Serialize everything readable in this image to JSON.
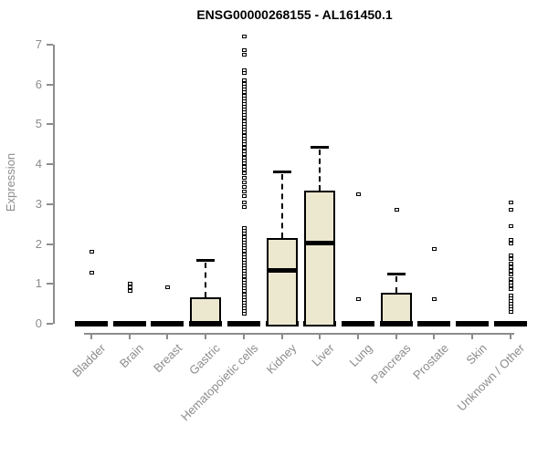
{
  "chart_data": {
    "type": "boxplot",
    "title": "ENSG00000268155 - AL161450.1",
    "xlabel": "",
    "ylabel": "Expression",
    "ylim": [
      0,
      7.2
    ],
    "yticks": [
      0,
      1,
      2,
      3,
      4,
      5,
      6,
      7
    ],
    "grid": "off",
    "legend": "none",
    "colors": {
      "box_fill": "#ece7cf",
      "box_border": "#000000",
      "axis": "#8c8c8c",
      "title_text": "#000000"
    },
    "categories": [
      "Bladder",
      "Brain",
      "Breast",
      "Gastric",
      "Hematopoietic cells",
      "Kidney",
      "Liver",
      "Lung",
      "Pancreas",
      "Prostate",
      "Skin",
      "Unknown / Other"
    ],
    "boxes": [
      {
        "name": "Bladder",
        "q1": 0,
        "median": 0,
        "q3": 0,
        "whisker_low": 0,
        "whisker_high": 0,
        "outliers": [
          1.81,
          1.28
        ]
      },
      {
        "name": "Brain",
        "q1": 0,
        "median": 0,
        "q3": 0,
        "whisker_low": 0,
        "whisker_high": 0,
        "outliers": [
          1.0,
          0.91,
          0.83
        ]
      },
      {
        "name": "Breast",
        "q1": 0,
        "median": 0,
        "q3": 0,
        "whisker_low": 0,
        "whisker_high": 0,
        "outliers": [
          0.91
        ]
      },
      {
        "name": "Gastric",
        "q1": 0,
        "median": 0.03,
        "q3": 0.66,
        "whisker_low": 0,
        "whisker_high": 1.6,
        "outliers": []
      },
      {
        "name": "Hematopoietic cells",
        "q1": 0,
        "median": 0,
        "q3": 0,
        "whisker_low": 0,
        "whisker_high": 0,
        "outliers": [
          7.2,
          6.87,
          6.75,
          6.37,
          6.3,
          6.11,
          6.02,
          5.95,
          5.88,
          5.81,
          5.73,
          5.66,
          5.59,
          5.52,
          5.45,
          5.37,
          5.3,
          5.23,
          5.16,
          5.09,
          5.01,
          4.94,
          4.87,
          4.8,
          4.72,
          4.65,
          4.57,
          4.5,
          4.42,
          4.33,
          4.25,
          4.17,
          4.1,
          4.02,
          3.94,
          3.86,
          3.78,
          3.66,
          3.55,
          3.43,
          3.32,
          3.2,
          3.04,
          2.92,
          2.4,
          2.33,
          2.26,
          2.18,
          2.11,
          2.04,
          1.97,
          1.9,
          1.82,
          1.75,
          1.68,
          1.61,
          1.54,
          1.46,
          1.39,
          1.32,
          1.25,
          1.18,
          1.1,
          1.03,
          0.96,
          0.89,
          0.82,
          0.74,
          0.67,
          0.6,
          0.53,
          0.46,
          0.38,
          0.31,
          0.25
        ]
      },
      {
        "name": "Kidney",
        "q1": 0,
        "median": 1.34,
        "q3": 2.15,
        "whisker_low": 0,
        "whisker_high": 3.82,
        "outliers": []
      },
      {
        "name": "Liver",
        "q1": 0,
        "median": 2.04,
        "q3": 3.34,
        "whisker_low": 0,
        "whisker_high": 4.44,
        "outliers": []
      },
      {
        "name": "Lung",
        "q1": 0,
        "median": 0,
        "q3": 0,
        "whisker_low": 0,
        "whisker_high": 0,
        "outliers": [
          3.25,
          0.62
        ]
      },
      {
        "name": "Pancreas",
        "q1": 0,
        "median": 0.03,
        "q3": 0.78,
        "whisker_low": 0,
        "whisker_high": 1.26,
        "outliers": [
          2.86
        ]
      },
      {
        "name": "Prostate",
        "q1": 0,
        "median": 0,
        "q3": 0,
        "whisker_low": 0,
        "whisker_high": 0,
        "outliers": [
          1.88,
          0.62
        ]
      },
      {
        "name": "Skin",
        "q1": 0,
        "median": 0,
        "q3": 0,
        "whisker_low": 0,
        "whisker_high": 0,
        "outliers": []
      },
      {
        "name": "Unknown / Other",
        "q1": 0,
        "median": 0,
        "q3": 0,
        "whisker_low": 0,
        "whisker_high": 0,
        "outliers": [
          3.05,
          2.85,
          2.45,
          2.1,
          2.01,
          1.72,
          1.62,
          1.52,
          1.42,
          1.33,
          1.24,
          1.12,
          1.04,
          0.96,
          0.88,
          0.72,
          0.64,
          0.57,
          0.5,
          0.43,
          0.36,
          0.29
        ]
      }
    ]
  }
}
